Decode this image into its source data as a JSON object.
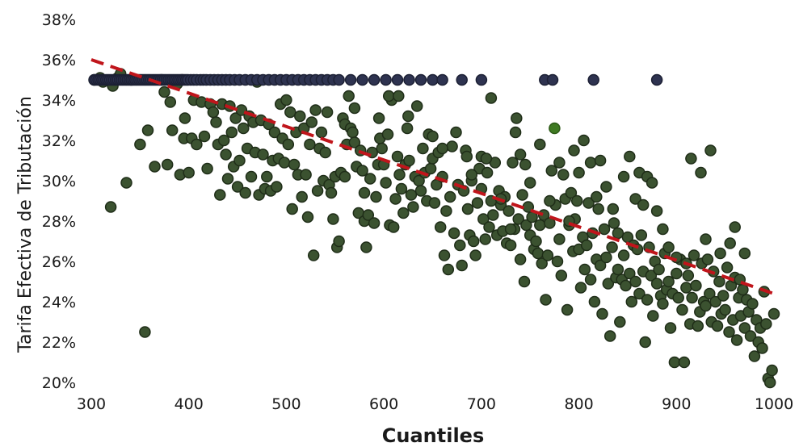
{
  "chart_data": {
    "type": "scatter",
    "title": "",
    "xlabel": "Cuantiles",
    "ylabel": "Tarifa Efectiva de Tributación",
    "xlim": [
      300,
      1000
    ],
    "ylim": [
      20,
      38
    ],
    "x_ticks": [
      300,
      400,
      500,
      600,
      700,
      800,
      900,
      1000
    ],
    "y_ticks": [
      20,
      22,
      24,
      26,
      28,
      30,
      32,
      34,
      36,
      38
    ],
    "y_tick_suffix": "%",
    "grid": false,
    "legend": "none",
    "colors": {
      "capped_points": "#2e3350",
      "points": "#3b5230",
      "point_edge": "#1f2d18",
      "highlight_point": "#3f7a22",
      "trendline": "#c0151b"
    },
    "capped_series": {
      "y": 35.0,
      "x": [
        303,
        305,
        307,
        309,
        311,
        313,
        315,
        317,
        319,
        321,
        323,
        325,
        327,
        329,
        331,
        333,
        335,
        337,
        339,
        341,
        343,
        345,
        347,
        349,
        351,
        353,
        355,
        357,
        359,
        361,
        363,
        365,
        367,
        369,
        371,
        373,
        375,
        377,
        379,
        381,
        383,
        385,
        387,
        389,
        391,
        393,
        395,
        397,
        399,
        402,
        405,
        408,
        412,
        415,
        418,
        422,
        426,
        430,
        434,
        438,
        442,
        447,
        452,
        458,
        464,
        470,
        476,
        482,
        488,
        494,
        500,
        506,
        512,
        518,
        524,
        530,
        536,
        542,
        548,
        554,
        566,
        578,
        590,
        602,
        614,
        626,
        638,
        650,
        660,
        680,
        700,
        765,
        773,
        815,
        880
      ]
    },
    "trendline": {
      "x": [
        300,
        1000
      ],
      "y": [
        36.0,
        24.4
      ],
      "style": "dashed"
    },
    "highlight": {
      "x": 775,
      "y": 32.6
    },
    "points": [
      [
        303,
        35.0
      ],
      [
        309,
        35.1
      ],
      [
        312,
        34.9
      ],
      [
        320,
        28.7
      ],
      [
        322,
        34.7
      ],
      [
        327,
        35.1
      ],
      [
        330,
        35.3
      ],
      [
        336,
        29.9
      ],
      [
        341,
        35.0
      ],
      [
        350,
        31.8
      ],
      [
        355,
        22.5
      ],
      [
        358,
        32.5
      ],
      [
        365,
        30.7
      ],
      [
        372,
        35.0
      ],
      [
        375,
        34.4
      ],
      [
        378,
        30.8
      ],
      [
        381,
        33.9
      ],
      [
        383,
        32.5
      ],
      [
        388,
        34.8
      ],
      [
        391,
        30.3
      ],
      [
        393,
        35.0
      ],
      [
        395,
        32.1
      ],
      [
        396,
        33.1
      ],
      [
        400,
        30.4
      ],
      [
        403,
        32.1
      ],
      [
        405,
        34.0
      ],
      [
        408,
        31.8
      ],
      [
        413,
        33.9
      ],
      [
        416,
        32.2
      ],
      [
        419,
        30.6
      ],
      [
        422,
        33.8
      ],
      [
        425,
        33.4
      ],
      [
        428,
        32.9
      ],
      [
        430,
        31.8
      ],
      [
        432,
        29.3
      ],
      [
        434,
        33.8
      ],
      [
        436,
        32.0
      ],
      [
        438,
        31.3
      ],
      [
        440,
        30.1
      ],
      [
        442,
        33.7
      ],
      [
        444,
        32.4
      ],
      [
        446,
        30.7
      ],
      [
        448,
        33.1
      ],
      [
        450,
        29.7
      ],
      [
        452,
        31.0
      ],
      [
        454,
        33.5
      ],
      [
        456,
        32.6
      ],
      [
        458,
        29.4
      ],
      [
        460,
        31.6
      ],
      [
        462,
        33.2
      ],
      [
        464,
        30.2
      ],
      [
        466,
        32.9
      ],
      [
        468,
        31.4
      ],
      [
        470,
        34.9
      ],
      [
        472,
        29.3
      ],
      [
        474,
        33.0
      ],
      [
        476,
        31.3
      ],
      [
        478,
        29.6
      ],
      [
        480,
        30.2
      ],
      [
        482,
        32.8
      ],
      [
        484,
        29.5
      ],
      [
        486,
        31.0
      ],
      [
        488,
        32.4
      ],
      [
        490,
        29.7
      ],
      [
        492,
        31.1
      ],
      [
        494,
        33.8
      ],
      [
        496,
        32.1
      ],
      [
        498,
        30.9
      ],
      [
        500,
        34.0
      ],
      [
        502,
        31.8
      ],
      [
        504,
        33.4
      ],
      [
        506,
        28.6
      ],
      [
        508,
        30.8
      ],
      [
        510,
        32.4
      ],
      [
        512,
        30.3
      ],
      [
        514,
        33.2
      ],
      [
        516,
        29.2
      ],
      [
        518,
        32.6
      ],
      [
        520,
        30.3
      ],
      [
        522,
        28.2
      ],
      [
        524,
        31.8
      ],
      [
        526,
        32.9
      ],
      [
        528,
        26.3
      ],
      [
        530,
        33.5
      ],
      [
        532,
        29.5
      ],
      [
        534,
        31.6
      ],
      [
        536,
        32.4
      ],
      [
        538,
        30.0
      ],
      [
        540,
        31.4
      ],
      [
        542,
        33.4
      ],
      [
        544,
        29.8
      ],
      [
        546,
        29.4
      ],
      [
        548,
        28.1
      ],
      [
        550,
        30.2
      ],
      [
        552,
        26.7
      ],
      [
        554,
        27.0
      ],
      [
        556,
        30.4
      ],
      [
        558,
        33.1
      ],
      [
        560,
        32.8
      ],
      [
        562,
        31.8
      ],
      [
        564,
        34.2
      ],
      [
        566,
        32.6
      ],
      [
        568,
        32.4
      ],
      [
        570,
        31.9
      ],
      [
        572,
        30.7
      ],
      [
        574,
        28.4
      ],
      [
        576,
        31.5
      ],
      [
        578,
        30.5
      ],
      [
        580,
        28.0
      ],
      [
        582,
        26.7
      ],
      [
        584,
        28.3
      ],
      [
        586,
        30.1
      ],
      [
        588,
        31.4
      ],
      [
        590,
        27.9
      ],
      [
        592,
        29.2
      ],
      [
        594,
        30.8
      ],
      [
        596,
        32.1
      ],
      [
        598,
        31.6
      ],
      [
        600,
        30.8
      ],
      [
        602,
        29.9
      ],
      [
        604,
        32.3
      ],
      [
        606,
        27.8
      ],
      [
        608,
        34.0
      ],
      [
        610,
        27.7
      ],
      [
        612,
        29.1
      ],
      [
        614,
        31.2
      ],
      [
        616,
        30.3
      ],
      [
        618,
        29.6
      ],
      [
        620,
        28.4
      ],
      [
        622,
        30.8
      ],
      [
        624,
        32.6
      ],
      [
        626,
        31.0
      ],
      [
        628,
        29.3
      ],
      [
        630,
        28.7
      ],
      [
        632,
        30.2
      ],
      [
        634,
        33.7
      ],
      [
        636,
        30.0
      ],
      [
        638,
        29.5
      ],
      [
        640,
        31.6
      ],
      [
        642,
        30.4
      ],
      [
        644,
        29.0
      ],
      [
        646,
        32.3
      ],
      [
        648,
        30.6
      ],
      [
        650,
        31.1
      ],
      [
        652,
        28.9
      ],
      [
        654,
        29.8
      ],
      [
        656,
        31.4
      ],
      [
        658,
        27.7
      ],
      [
        660,
        30.2
      ],
      [
        662,
        26.3
      ],
      [
        664,
        28.5
      ],
      [
        666,
        25.6
      ],
      [
        668,
        29.2
      ],
      [
        670,
        31.7
      ],
      [
        672,
        27.4
      ],
      [
        674,
        32.4
      ],
      [
        676,
        29.8
      ],
      [
        678,
        26.8
      ],
      [
        680,
        25.8
      ],
      [
        682,
        29.5
      ],
      [
        684,
        31.5
      ],
      [
        686,
        28.6
      ],
      [
        688,
        27.3
      ],
      [
        690,
        30.0
      ],
      [
        692,
        27.0
      ],
      [
        694,
        26.3
      ],
      [
        696,
        28.9
      ],
      [
        698,
        30.6
      ],
      [
        700,
        31.2
      ],
      [
        702,
        28.1
      ],
      [
        704,
        27.1
      ],
      [
        706,
        30.4
      ],
      [
        708,
        27.7
      ],
      [
        710,
        29.0
      ],
      [
        712,
        28.3
      ],
      [
        714,
        30.9
      ],
      [
        716,
        27.3
      ],
      [
        718,
        29.5
      ],
      [
        720,
        28.8
      ],
      [
        722,
        27.5
      ],
      [
        724,
        29.2
      ],
      [
        726,
        26.9
      ],
      [
        728,
        28.5
      ],
      [
        730,
        26.8
      ],
      [
        732,
        30.9
      ],
      [
        734,
        27.6
      ],
      [
        736,
        33.1
      ],
      [
        738,
        28.1
      ],
      [
        740,
        26.1
      ],
      [
        742,
        29.3
      ],
      [
        744,
        25.0
      ],
      [
        746,
        27.8
      ],
      [
        748,
        28.7
      ],
      [
        750,
        27.3
      ],
      [
        752,
        28.2
      ],
      [
        754,
        26.6
      ],
      [
        756,
        27.0
      ],
      [
        758,
        26.4
      ],
      [
        760,
        27.8
      ],
      [
        762,
        25.9
      ],
      [
        764,
        28.3
      ],
      [
        766,
        24.1
      ],
      [
        768,
        26.3
      ],
      [
        770,
        27.9
      ],
      [
        772,
        30.5
      ],
      [
        776,
        28.8
      ],
      [
        778,
        26.0
      ],
      [
        780,
        27.1
      ],
      [
        782,
        25.3
      ],
      [
        784,
        30.3
      ],
      [
        786,
        29.1
      ],
      [
        788,
        23.6
      ],
      [
        790,
        27.8
      ],
      [
        792,
        29.4
      ],
      [
        794,
        26.5
      ],
      [
        796,
        28.1
      ],
      [
        798,
        29.0
      ],
      [
        800,
        26.6
      ],
      [
        802,
        24.7
      ],
      [
        804,
        27.2
      ],
      [
        806,
        25.6
      ],
      [
        808,
        26.8
      ],
      [
        810,
        28.9
      ],
      [
        812,
        25.1
      ],
      [
        814,
        27.4
      ],
      [
        816,
        24.0
      ],
      [
        818,
        26.1
      ],
      [
        820,
        28.6
      ],
      [
        822,
        25.8
      ],
      [
        824,
        23.4
      ],
      [
        826,
        27.6
      ],
      [
        828,
        26.2
      ],
      [
        830,
        24.9
      ],
      [
        832,
        22.3
      ],
      [
        834,
        26.7
      ],
      [
        836,
        27.9
      ],
      [
        838,
        25.2
      ],
      [
        840,
        25.6
      ],
      [
        842,
        23.0
      ],
      [
        844,
        25.1
      ],
      [
        846,
        26.3
      ],
      [
        848,
        24.8
      ],
      [
        850,
        27.2
      ],
      [
        852,
        25.4
      ],
      [
        854,
        24.0
      ],
      [
        856,
        26.8
      ],
      [
        858,
        25.0
      ],
      [
        860,
        26.6
      ],
      [
        862,
        24.4
      ],
      [
        864,
        27.3
      ],
      [
        866,
        25.5
      ],
      [
        868,
        22.0
      ],
      [
        870,
        24.1
      ],
      [
        872,
        26.7
      ],
      [
        874,
        25.3
      ],
      [
        876,
        23.3
      ],
      [
        878,
        26.0
      ],
      [
        880,
        24.9
      ],
      [
        882,
        25.6
      ],
      [
        884,
        24.3
      ],
      [
        886,
        23.9
      ],
      [
        888,
        26.4
      ],
      [
        890,
        24.6
      ],
      [
        892,
        25.0
      ],
      [
        894,
        22.7
      ],
      [
        896,
        24.4
      ],
      [
        898,
        21.0
      ],
      [
        900,
        25.4
      ],
      [
        902,
        24.2
      ],
      [
        904,
        26.1
      ],
      [
        906,
        23.6
      ],
      [
        908,
        21.0
      ],
      [
        910,
        24.7
      ],
      [
        912,
        25.3
      ],
      [
        914,
        22.9
      ],
      [
        916,
        24.2
      ],
      [
        918,
        26.3
      ],
      [
        920,
        24.8
      ],
      [
        922,
        22.8
      ],
      [
        924,
        23.5
      ],
      [
        926,
        25.9
      ],
      [
        928,
        24.0
      ],
      [
        930,
        23.8
      ],
      [
        932,
        26.1
      ],
      [
        934,
        24.4
      ],
      [
        936,
        23.0
      ],
      [
        938,
        25.5
      ],
      [
        940,
        24.0
      ],
      [
        942,
        22.8
      ],
      [
        944,
        25.0
      ],
      [
        946,
        23.4
      ],
      [
        948,
        24.3
      ],
      [
        950,
        23.6
      ],
      [
        952,
        25.7
      ],
      [
        954,
        22.5
      ],
      [
        956,
        24.8
      ],
      [
        958,
        23.1
      ],
      [
        960,
        25.2
      ],
      [
        962,
        22.1
      ],
      [
        964,
        24.2
      ],
      [
        966,
        23.3
      ],
      [
        968,
        24.6
      ],
      [
        970,
        22.7
      ],
      [
        972,
        24.1
      ],
      [
        974,
        23.5
      ],
      [
        976,
        22.3
      ],
      [
        978,
        23.9
      ],
      [
        980,
        21.3
      ],
      [
        982,
        23.1
      ],
      [
        984,
        22.0
      ],
      [
        986,
        22.7
      ],
      [
        988,
        21.7
      ],
      [
        990,
        24.5
      ],
      [
        992,
        22.9
      ],
      [
        994,
        20.2
      ],
      [
        996,
        20.0
      ],
      [
        998,
        20.6
      ],
      [
        1000,
        23.4
      ],
      [
        560,
        30.2
      ],
      [
        570,
        33.6
      ],
      [
        580,
        29.4
      ],
      [
        595,
        33.1
      ],
      [
        605,
        34.2
      ],
      [
        615,
        34.2
      ],
      [
        625,
        33.2
      ],
      [
        650,
        32.2
      ],
      [
        660,
        31.6
      ],
      [
        685,
        31.2
      ],
      [
        690,
        30.3
      ],
      [
        700,
        29.6
      ],
      [
        705,
        31.1
      ],
      [
        710,
        34.1
      ],
      [
        720,
        29.1
      ],
      [
        730,
        27.6
      ],
      [
        735,
        32.4
      ],
      [
        740,
        31.3
      ],
      [
        745,
        30.8
      ],
      [
        750,
        29.9
      ],
      [
        760,
        31.8
      ],
      [
        770,
        29.0
      ],
      [
        780,
        30.9
      ],
      [
        790,
        28.0
      ],
      [
        795,
        31.5
      ],
      [
        800,
        30.4
      ],
      [
        805,
        32.0
      ],
      [
        812,
        30.9
      ],
      [
        818,
        29.2
      ],
      [
        822,
        31.0
      ],
      [
        828,
        29.7
      ],
      [
        835,
        28.6
      ],
      [
        840,
        27.4
      ],
      [
        846,
        30.2
      ],
      [
        852,
        31.2
      ],
      [
        858,
        29.1
      ],
      [
        862,
        30.4
      ],
      [
        866,
        28.8
      ],
      [
        870,
        30.2
      ],
      [
        875,
        29.9
      ],
      [
        880,
        28.5
      ],
      [
        886,
        27.6
      ],
      [
        892,
        26.7
      ],
      [
        900,
        26.2
      ],
      [
        910,
        25.9
      ],
      [
        915,
        31.1
      ],
      [
        925,
        30.4
      ],
      [
        930,
        27.1
      ],
      [
        935,
        31.5
      ],
      [
        945,
        26.4
      ],
      [
        955,
        26.9
      ],
      [
        960,
        27.7
      ],
      [
        965,
        25.1
      ],
      [
        970,
        26.4
      ]
    ]
  }
}
